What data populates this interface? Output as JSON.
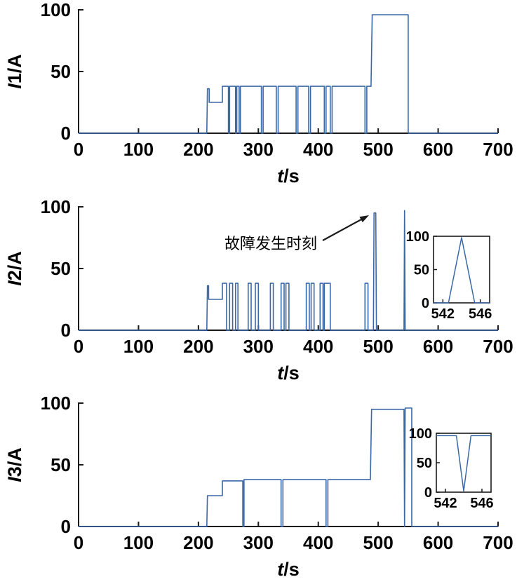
{
  "colors": {
    "line": "#3A68A7",
    "axis": "#1A1A1A",
    "text": "#000000",
    "background": "#FFFFFF"
  },
  "annotation": {
    "text": "故障发生时刻"
  },
  "chart_data": [
    {
      "type": "line",
      "id": "i1",
      "ylabel": "I1/A",
      "ylabel_italic": "I",
      "ylabel_rest": "1/A",
      "xlabel": "t/s",
      "xlabel_italic": "t",
      "xlabel_rest": "/s",
      "xlim": [
        0,
        700
      ],
      "ylim": [
        0,
        100
      ],
      "xticks": [
        0,
        100,
        200,
        300,
        400,
        500,
        600,
        700
      ],
      "yticks": [
        0,
        50,
        100
      ],
      "grid": false,
      "points": [
        [
          0,
          0
        ],
        [
          214,
          0
        ],
        [
          215,
          36
        ],
        [
          218,
          36
        ],
        [
          218,
          25
        ],
        [
          240,
          25
        ],
        [
          240,
          38
        ],
        [
          250,
          38
        ],
        [
          250,
          0
        ],
        [
          252,
          0
        ],
        [
          252,
          38
        ],
        [
          262,
          38
        ],
        [
          262,
          0
        ],
        [
          264,
          0
        ],
        [
          264,
          38
        ],
        [
          268,
          38
        ],
        [
          268,
          0
        ],
        [
          270,
          0
        ],
        [
          270,
          38
        ],
        [
          305,
          38
        ],
        [
          305,
          0
        ],
        [
          308,
          0
        ],
        [
          308,
          38
        ],
        [
          330,
          38
        ],
        [
          330,
          0
        ],
        [
          333,
          0
        ],
        [
          333,
          38
        ],
        [
          363,
          38
        ],
        [
          363,
          0
        ],
        [
          366,
          0
        ],
        [
          366,
          38
        ],
        [
          384,
          38
        ],
        [
          384,
          0
        ],
        [
          387,
          0
        ],
        [
          387,
          38
        ],
        [
          410,
          38
        ],
        [
          410,
          0
        ],
        [
          413,
          0
        ],
        [
          413,
          38
        ],
        [
          420,
          38
        ],
        [
          420,
          0
        ],
        [
          423,
          0
        ],
        [
          423,
          38
        ],
        [
          478,
          38
        ],
        [
          478,
          0
        ],
        [
          481,
          0
        ],
        [
          481,
          38
        ],
        [
          488,
          38
        ],
        [
          490,
          96
        ],
        [
          548,
          96
        ],
        [
          550,
          96
        ],
        [
          550,
          0
        ],
        [
          700,
          0
        ]
      ]
    },
    {
      "type": "line",
      "id": "i2",
      "ylabel": "I2/A",
      "ylabel_italic": "I",
      "ylabel_rest": "2/A",
      "xlabel": "t/s",
      "xlabel_italic": "t",
      "xlabel_rest": "/s",
      "xlim": [
        0,
        700
      ],
      "ylim": [
        0,
        100
      ],
      "xticks": [
        0,
        100,
        200,
        300,
        400,
        500,
        600,
        700
      ],
      "yticks": [
        0,
        50,
        100
      ],
      "grid": false,
      "annotation_text": "故障发生时刻",
      "points": [
        [
          0,
          0
        ],
        [
          214,
          0
        ],
        [
          215,
          36
        ],
        [
          217,
          36
        ],
        [
          217,
          25
        ],
        [
          240,
          25
        ],
        [
          240,
          38
        ],
        [
          247,
          38
        ],
        [
          247,
          0
        ],
        [
          252,
          0
        ],
        [
          252,
          38
        ],
        [
          257,
          38
        ],
        [
          257,
          0
        ],
        [
          262,
          0
        ],
        [
          262,
          38
        ],
        [
          266,
          38
        ],
        [
          266,
          0
        ],
        [
          283,
          0
        ],
        [
          283,
          38
        ],
        [
          288,
          38
        ],
        [
          288,
          0
        ],
        [
          295,
          0
        ],
        [
          295,
          38
        ],
        [
          300,
          38
        ],
        [
          300,
          0
        ],
        [
          320,
          0
        ],
        [
          320,
          38
        ],
        [
          325,
          38
        ],
        [
          325,
          0
        ],
        [
          338,
          0
        ],
        [
          338,
          38
        ],
        [
          343,
          38
        ],
        [
          343,
          0
        ],
        [
          346,
          0
        ],
        [
          346,
          38
        ],
        [
          351,
          38
        ],
        [
          351,
          0
        ],
        [
          380,
          0
        ],
        [
          380,
          38
        ],
        [
          385,
          38
        ],
        [
          385,
          0
        ],
        [
          388,
          0
        ],
        [
          388,
          38
        ],
        [
          393,
          38
        ],
        [
          393,
          0
        ],
        [
          403,
          0
        ],
        [
          403,
          38
        ],
        [
          408,
          38
        ],
        [
          408,
          0
        ],
        [
          410,
          0
        ],
        [
          410,
          38
        ],
        [
          420,
          38
        ],
        [
          420,
          0
        ],
        [
          478,
          0
        ],
        [
          478,
          38
        ],
        [
          483,
          38
        ],
        [
          483,
          0
        ],
        [
          492,
          0
        ],
        [
          493,
          95
        ],
        [
          496,
          95
        ],
        [
          497,
          0
        ],
        [
          541,
          0
        ],
        [
          543,
          0
        ],
        [
          544,
          97
        ],
        [
          545,
          0
        ],
        [
          547,
          0
        ],
        [
          700,
          0
        ]
      ],
      "inset": {
        "type": "line",
        "xlim": [
          541,
          547
        ],
        "ylim": [
          0,
          100
        ],
        "xticks": [
          542,
          546
        ],
        "yticks": [
          0,
          50,
          100
        ],
        "points": [
          [
            541,
            0
          ],
          [
            542.6,
            0
          ],
          [
            544,
            98
          ],
          [
            545.4,
            0
          ],
          [
            547,
            0
          ]
        ]
      }
    },
    {
      "type": "line",
      "id": "i3",
      "ylabel": "I3/A",
      "ylabel_italic": "I",
      "ylabel_rest": "3/A",
      "xlabel": "t/s",
      "xlabel_italic": "t",
      "xlabel_rest": "/s",
      "xlim": [
        0,
        700
      ],
      "ylim": [
        0,
        100
      ],
      "xticks": [
        0,
        100,
        200,
        300,
        400,
        500,
        600,
        700
      ],
      "yticks": [
        0,
        50,
        100
      ],
      "grid": false,
      "points": [
        [
          0,
          0
        ],
        [
          214,
          0
        ],
        [
          215,
          25
        ],
        [
          240,
          25
        ],
        [
          240,
          37
        ],
        [
          274,
          37
        ],
        [
          274,
          0
        ],
        [
          276,
          0
        ],
        [
          276,
          38
        ],
        [
          338,
          38
        ],
        [
          338,
          0
        ],
        [
          341,
          0
        ],
        [
          341,
          38
        ],
        [
          413,
          38
        ],
        [
          413,
          0
        ],
        [
          416,
          0
        ],
        [
          416,
          38
        ],
        [
          487,
          38
        ],
        [
          489,
          95
        ],
        [
          541,
          95
        ],
        [
          543,
          95
        ],
        [
          544,
          0
        ],
        [
          545,
          96
        ],
        [
          556,
          96
        ],
        [
          556,
          0
        ],
        [
          558,
          0
        ],
        [
          700,
          0
        ]
      ],
      "inset": {
        "type": "line",
        "xlim": [
          541,
          547
        ],
        "ylim": [
          0,
          100
        ],
        "xticks": [
          542,
          546
        ],
        "yticks": [
          0,
          50,
          100
        ],
        "points": [
          [
            541,
            96
          ],
          [
            543.2,
            96
          ],
          [
            544,
            2
          ],
          [
            544.8,
            96
          ],
          [
            547,
            96
          ]
        ]
      }
    }
  ]
}
